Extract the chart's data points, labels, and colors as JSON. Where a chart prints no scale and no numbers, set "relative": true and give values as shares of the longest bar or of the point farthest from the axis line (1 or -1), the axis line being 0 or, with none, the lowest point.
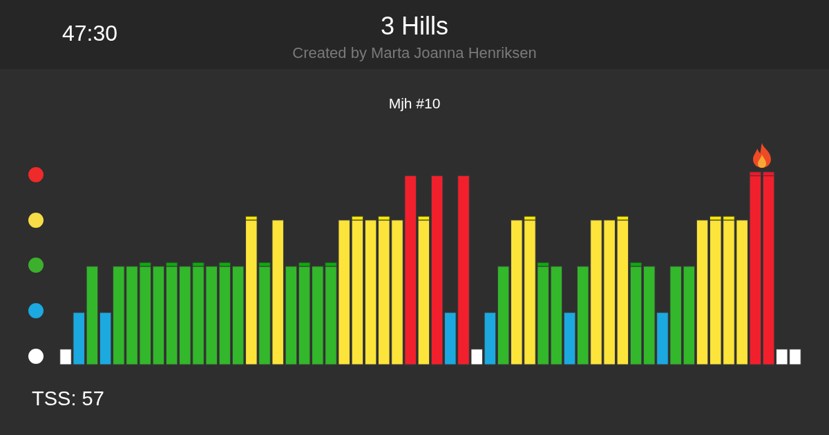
{
  "chart_data": {
    "type": "bar",
    "title": "3 Hills",
    "subtitle": "Created by Marta Joanna Henriksen",
    "annotations": [
      "47:30",
      "Mjh #10",
      "TSS: 57"
    ],
    "relative": true,
    "stacked": true,
    "categories": [
      null,
      null,
      null,
      null,
      null,
      null,
      null,
      null,
      null,
      null,
      null,
      null,
      null,
      null,
      null,
      null,
      null,
      null,
      null,
      null,
      null,
      null,
      null,
      null,
      null,
      null,
      null,
      null,
      null,
      null,
      null,
      null,
      null,
      null,
      null,
      null,
      null,
      null,
      null,
      null,
      null,
      null,
      null,
      null,
      null,
      null,
      null,
      null,
      null,
      null,
      null,
      null,
      null,
      null,
      null,
      null
    ],
    "series": [
      {
        "values": [
          0.08,
          0.27,
          0.51,
          0.27,
          0.51,
          0.51,
          0.51,
          0.51,
          0.51,
          0.51,
          0.51,
          0.51,
          0.51,
          0.51,
          0.75,
          0.51,
          0.75,
          0.51,
          0.51,
          0.51,
          0.51,
          0.75,
          0.75,
          0.75,
          0.75,
          0.75,
          0.98,
          0.75,
          0.98,
          0.27,
          0.98,
          0.08,
          0.27,
          0.51,
          0.75,
          0.75,
          0.51,
          0.51,
          0.27,
          0.51,
          0.75,
          0.75,
          0.75,
          0.51,
          0.51,
          0.27,
          0.51,
          0.51,
          0.75,
          0.75,
          0.75,
          0.75,
          0.98,
          0.98,
          0.08,
          0.08
        ],
        "colors": [
          "#ffffff",
          "#1ba9e0",
          "#32b82a",
          "#1ba9e0",
          "#32b82a",
          "#32b82a",
          "#32b82a",
          "#32b82a",
          "#32b82a",
          "#32b82a",
          "#32b82a",
          "#32b82a",
          "#32b82a",
          "#32b82a",
          "#fce43a",
          "#32b82a",
          "#fce43a",
          "#32b82a",
          "#32b82a",
          "#32b82a",
          "#32b82a",
          "#fce43a",
          "#fce43a",
          "#fce43a",
          "#fce43a",
          "#fce43a",
          "#f2202c",
          "#fce43a",
          "#f2202c",
          "#1ba9e0",
          "#f2202c",
          "#ffffff",
          "#1ba9e0",
          "#32b82a",
          "#fce43a",
          "#fce43a",
          "#32b82a",
          "#32b82a",
          "#1ba9e0",
          "#32b82a",
          "#fce43a",
          "#fce43a",
          "#fce43a",
          "#32b82a",
          "#32b82a",
          "#1ba9e0",
          "#32b82a",
          "#32b82a",
          "#fce43a",
          "#fce43a",
          "#fce43a",
          "#fce43a",
          "#f2202c",
          "#f2202c",
          "#ffffff",
          "#ffffff"
        ]
      },
      {
        "values": [
          null,
          null,
          null,
          null,
          null,
          null,
          0.02,
          null,
          0.02,
          null,
          0.02,
          null,
          0.02,
          null,
          0.02,
          0.02,
          null,
          null,
          0.02,
          null,
          0.02,
          null,
          0.02,
          null,
          0.02,
          null,
          null,
          0.02,
          null,
          null,
          null,
          null,
          null,
          null,
          null,
          0.02,
          0.02,
          null,
          null,
          null,
          null,
          null,
          0.02,
          0.02,
          null,
          null,
          null,
          null,
          null,
          0.02,
          0.02,
          null,
          0.02,
          0.02,
          null,
          null
        ],
        "colors": [
          null,
          null,
          null,
          null,
          null,
          null,
          "#0aad0a",
          null,
          "#0aad0a",
          null,
          "#0aad0a",
          null,
          "#0aad0a",
          null,
          "#f6e600",
          "#0aad0a",
          null,
          null,
          "#0aad0a",
          null,
          "#0aad0a",
          null,
          "#f6e600",
          null,
          "#f6e600",
          null,
          null,
          "#f6e600",
          null,
          null,
          null,
          null,
          null,
          null,
          null,
          "#f6e600",
          "#0aad0a",
          null,
          null,
          null,
          null,
          null,
          "#f6e600",
          "#0aad0a",
          null,
          null,
          null,
          null,
          null,
          "#f6e600",
          "#f6e600",
          null,
          "#ff1428",
          "#ff1428",
          null,
          null
        ]
      }
    ]
  }
}
